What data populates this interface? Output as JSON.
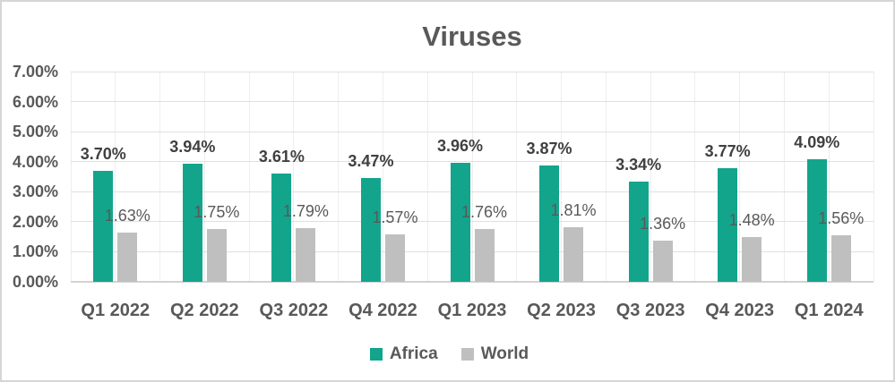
{
  "title": "Viruses",
  "chart_data": {
    "type": "bar",
    "title": "Viruses",
    "categories": [
      "Q1 2022",
      "Q2 2022",
      "Q3 2022",
      "Q4 2022",
      "Q1 2023",
      "Q2 2023",
      "Q3 2023",
      "Q4 2023",
      "Q1 2024"
    ],
    "series": [
      {
        "name": "Africa",
        "color": "#12A58C",
        "values": [
          3.7,
          3.94,
          3.61,
          3.47,
          3.96,
          3.87,
          3.34,
          3.77,
          4.09
        ],
        "data_labels": [
          "3.70%",
          "3.94%",
          "3.61%",
          "3.47%",
          "3.96%",
          "3.87%",
          "3.34%",
          "3.77%",
          "4.09%"
        ]
      },
      {
        "name": "World",
        "color": "#BFBFBF",
        "values": [
          1.63,
          1.75,
          1.79,
          1.57,
          1.76,
          1.81,
          1.36,
          1.48,
          1.56
        ],
        "data_labels": [
          "1.63%",
          "1.75%",
          "1.79%",
          "1.57%",
          "1.76%",
          "1.81%",
          "1.36%",
          "1.48%",
          "1.56%"
        ]
      }
    ],
    "y_axis": {
      "min": 0,
      "max": 7,
      "tick_step": 1,
      "tick_labels": [
        "0.00%",
        "1.00%",
        "2.00%",
        "3.00%",
        "4.00%",
        "5.00%",
        "6.00%",
        "7.00%"
      ]
    },
    "x_axis": {
      "label": ""
    },
    "legend": {
      "position": "bottom",
      "entries": [
        "Africa",
        "World"
      ]
    },
    "grid": {
      "horizontal": true,
      "vertical": true
    }
  },
  "colors": {
    "africa": "#12A58C",
    "world": "#BFBFBF",
    "axis_text": "#595959",
    "africa_label_text": "#404040",
    "world_label_text": "#595959",
    "gridline_h": "#E0E0E0",
    "gridline_v": "#EEEEEE",
    "axis_line": "#D2D2D2",
    "frame_border": "#D6D6D6",
    "background": "#FFFFFF"
  }
}
